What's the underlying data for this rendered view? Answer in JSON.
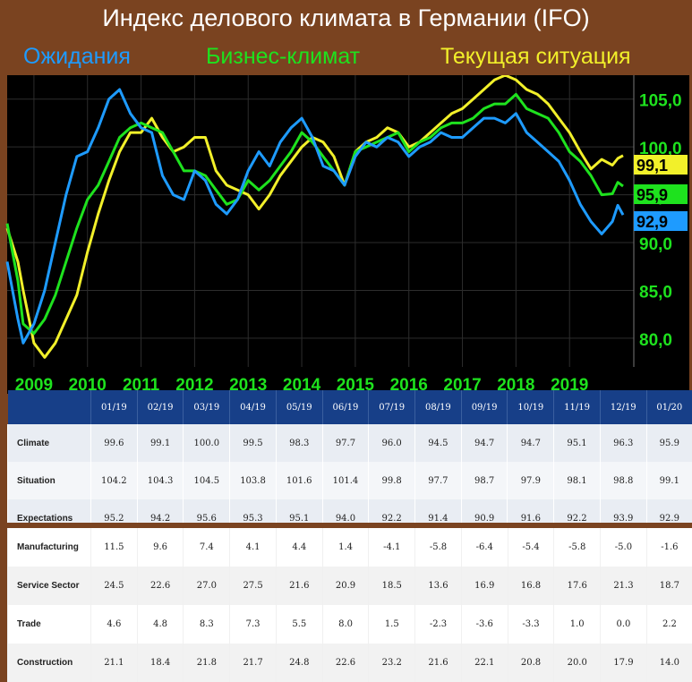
{
  "title": "Индекс делового климата в Германии (IFO)",
  "legend": {
    "expectations": "Ожидания",
    "climate": "Бизнес-климат",
    "situation": "Текущая ситуация"
  },
  "colors": {
    "expectations": "#1e9bff",
    "climate": "#1ee21e",
    "situation": "#f2f02a",
    "axis_label": "#1ee21e",
    "year_label": "#1ee21e",
    "plot_bg": "#000000",
    "table_header_bg": "#173f88"
  },
  "chart_data": {
    "type": "line",
    "x_labels": [
      "2009",
      "2010",
      "2011",
      "2012",
      "2013",
      "2014",
      "2015",
      "2016",
      "2017",
      "2018",
      "2019"
    ],
    "xlim": [
      2008.5,
      2020.2
    ],
    "ylim": [
      77.0,
      107.5
    ],
    "y_ticks": [
      80.0,
      85.0,
      90.0,
      95.0,
      100.0,
      105.0
    ],
    "y_tick_labels": [
      "80,0",
      "85,0",
      "90,0",
      "95,0",
      "100,0",
      "105,0"
    ],
    "grid": true,
    "series": [
      {
        "name": "Бизнес-климат",
        "key": "climate",
        "end_label": "95,9",
        "points": [
          [
            2008.5,
            92.0
          ],
          [
            2008.7,
            86.0
          ],
          [
            2008.8,
            81.5
          ],
          [
            2009.0,
            80.5
          ],
          [
            2009.2,
            82.0
          ],
          [
            2009.4,
            84.5
          ],
          [
            2009.6,
            88.0
          ],
          [
            2009.8,
            91.5
          ],
          [
            2010.0,
            94.5
          ],
          [
            2010.2,
            96.0
          ],
          [
            2010.4,
            98.5
          ],
          [
            2010.6,
            101.0
          ],
          [
            2010.8,
            102.0
          ],
          [
            2011.0,
            102.5
          ],
          [
            2011.2,
            102.0
          ],
          [
            2011.4,
            101.5
          ],
          [
            2011.6,
            99.5
          ],
          [
            2011.8,
            97.5
          ],
          [
            2012.0,
            97.5
          ],
          [
            2012.2,
            97.0
          ],
          [
            2012.4,
            95.5
          ],
          [
            2012.6,
            94.0
          ],
          [
            2012.8,
            94.5
          ],
          [
            2013.0,
            96.5
          ],
          [
            2013.2,
            95.5
          ],
          [
            2013.4,
            96.5
          ],
          [
            2013.6,
            98.0
          ],
          [
            2013.8,
            99.5
          ],
          [
            2014.0,
            101.5
          ],
          [
            2014.2,
            100.5
          ],
          [
            2014.4,
            99.0
          ],
          [
            2014.6,
            97.5
          ],
          [
            2014.8,
            96.0
          ],
          [
            2015.0,
            99.5
          ],
          [
            2015.2,
            100.0
          ],
          [
            2015.4,
            100.5
          ],
          [
            2015.6,
            101.0
          ],
          [
            2015.8,
            101.5
          ],
          [
            2016.0,
            99.5
          ],
          [
            2016.2,
            100.5
          ],
          [
            2016.4,
            101.0
          ],
          [
            2016.6,
            102.0
          ],
          [
            2016.8,
            102.5
          ],
          [
            2017.0,
            102.5
          ],
          [
            2017.2,
            103.0
          ],
          [
            2017.4,
            104.0
          ],
          [
            2017.6,
            104.5
          ],
          [
            2017.8,
            104.5
          ],
          [
            2018.0,
            105.5
          ],
          [
            2018.2,
            104.0
          ],
          [
            2018.4,
            103.5
          ],
          [
            2018.6,
            103.0
          ],
          [
            2018.8,
            101.5
          ],
          [
            2019.0,
            99.5
          ],
          [
            2019.2,
            98.5
          ],
          [
            2019.4,
            97.0
          ],
          [
            2019.6,
            95.0
          ],
          [
            2019.8,
            95.1
          ],
          [
            2019.9,
            96.3
          ],
          [
            2020.0,
            95.9
          ]
        ]
      },
      {
        "name": "Ожидания",
        "key": "expectations",
        "end_label": "92,9",
        "points": [
          [
            2008.5,
            88.0
          ],
          [
            2008.7,
            82.0
          ],
          [
            2008.8,
            79.5
          ],
          [
            2009.0,
            81.5
          ],
          [
            2009.2,
            85.0
          ],
          [
            2009.4,
            90.0
          ],
          [
            2009.6,
            95.0
          ],
          [
            2009.8,
            99.0
          ],
          [
            2010.0,
            99.5
          ],
          [
            2010.2,
            102.0
          ],
          [
            2010.4,
            105.0
          ],
          [
            2010.6,
            106.0
          ],
          [
            2010.8,
            103.5
          ],
          [
            2011.0,
            102.0
          ],
          [
            2011.2,
            101.5
          ],
          [
            2011.4,
            97.0
          ],
          [
            2011.6,
            95.0
          ],
          [
            2011.8,
            94.5
          ],
          [
            2012.0,
            97.5
          ],
          [
            2012.2,
            96.5
          ],
          [
            2012.4,
            94.0
          ],
          [
            2012.6,
            93.0
          ],
          [
            2012.8,
            94.5
          ],
          [
            2013.0,
            97.5
          ],
          [
            2013.2,
            99.5
          ],
          [
            2013.4,
            98.0
          ],
          [
            2013.6,
            100.5
          ],
          [
            2013.8,
            102.0
          ],
          [
            2014.0,
            103.0
          ],
          [
            2014.2,
            101.0
          ],
          [
            2014.4,
            98.0
          ],
          [
            2014.6,
            97.5
          ],
          [
            2014.8,
            96.0
          ],
          [
            2015.0,
            99.0
          ],
          [
            2015.2,
            100.5
          ],
          [
            2015.4,
            100.0
          ],
          [
            2015.6,
            101.0
          ],
          [
            2015.8,
            100.5
          ],
          [
            2016.0,
            99.0
          ],
          [
            2016.2,
            100.0
          ],
          [
            2016.4,
            100.5
          ],
          [
            2016.6,
            101.5
          ],
          [
            2016.8,
            101.0
          ],
          [
            2017.0,
            101.0
          ],
          [
            2017.2,
            102.0
          ],
          [
            2017.4,
            103.0
          ],
          [
            2017.6,
            103.0
          ],
          [
            2017.8,
            102.5
          ],
          [
            2018.0,
            103.5
          ],
          [
            2018.2,
            101.5
          ],
          [
            2018.4,
            100.5
          ],
          [
            2018.6,
            99.5
          ],
          [
            2018.8,
            98.5
          ],
          [
            2019.0,
            96.5
          ],
          [
            2019.2,
            94.0
          ],
          [
            2019.4,
            92.2
          ],
          [
            2019.6,
            90.9
          ],
          [
            2019.8,
            92.2
          ],
          [
            2019.9,
            93.9
          ],
          [
            2020.0,
            92.9
          ]
        ]
      },
      {
        "name": "Текущая ситуация",
        "key": "situation",
        "end_label": "99,1",
        "points": [
          [
            2008.5,
            91.5
          ],
          [
            2008.7,
            88.0
          ],
          [
            2008.8,
            85.0
          ],
          [
            2009.0,
            79.5
          ],
          [
            2009.2,
            78.0
          ],
          [
            2009.4,
            79.5
          ],
          [
            2009.6,
            82.0
          ],
          [
            2009.8,
            84.5
          ],
          [
            2010.0,
            89.0
          ],
          [
            2010.2,
            93.0
          ],
          [
            2010.4,
            96.5
          ],
          [
            2010.6,
            99.5
          ],
          [
            2010.8,
            101.5
          ],
          [
            2011.0,
            101.5
          ],
          [
            2011.2,
            103.0
          ],
          [
            2011.4,
            101.0
          ],
          [
            2011.6,
            99.5
          ],
          [
            2011.8,
            100.0
          ],
          [
            2012.0,
            101.0
          ],
          [
            2012.2,
            101.0
          ],
          [
            2012.4,
            97.5
          ],
          [
            2012.6,
            96.0
          ],
          [
            2012.8,
            95.5
          ],
          [
            2013.0,
            95.0
          ],
          [
            2013.2,
            93.5
          ],
          [
            2013.4,
            95.0
          ],
          [
            2013.6,
            97.0
          ],
          [
            2013.8,
            98.5
          ],
          [
            2014.0,
            100.0
          ],
          [
            2014.2,
            101.0
          ],
          [
            2014.4,
            100.5
          ],
          [
            2014.6,
            99.0
          ],
          [
            2014.8,
            96.0
          ],
          [
            2015.0,
            99.5
          ],
          [
            2015.2,
            100.5
          ],
          [
            2015.4,
            101.0
          ],
          [
            2015.6,
            102.0
          ],
          [
            2015.8,
            101.5
          ],
          [
            2016.0,
            100.0
          ],
          [
            2016.2,
            100.5
          ],
          [
            2016.4,
            101.5
          ],
          [
            2016.6,
            102.5
          ],
          [
            2016.8,
            103.5
          ],
          [
            2017.0,
            104.0
          ],
          [
            2017.2,
            105.0
          ],
          [
            2017.4,
            106.0
          ],
          [
            2017.6,
            107.0
          ],
          [
            2017.8,
            107.5
          ],
          [
            2018.0,
            107.0
          ],
          [
            2018.2,
            106.0
          ],
          [
            2018.4,
            105.5
          ],
          [
            2018.6,
            104.5
          ],
          [
            2018.8,
            103.0
          ],
          [
            2019.0,
            101.5
          ],
          [
            2019.2,
            99.5
          ],
          [
            2019.4,
            97.7
          ],
          [
            2019.6,
            98.7
          ],
          [
            2019.8,
            98.1
          ],
          [
            2019.9,
            98.8
          ],
          [
            2020.0,
            99.1
          ]
        ]
      }
    ]
  },
  "table_top": {
    "months": [
      "01/19",
      "02/19",
      "03/19",
      "04/19",
      "05/19",
      "06/19",
      "07/19",
      "08/19",
      "09/19",
      "10/19",
      "11/19",
      "12/19",
      "01/20"
    ],
    "rows": [
      {
        "label": "Climate",
        "values": [
          "99.6",
          "99.1",
          "100.0",
          "99.5",
          "98.3",
          "97.7",
          "96.0",
          "94.5",
          "94.7",
          "94.7",
          "95.1",
          "96.3",
          "95.9"
        ]
      },
      {
        "label": "Situation",
        "values": [
          "104.2",
          "104.3",
          "104.5",
          "103.8",
          "101.6",
          "101.4",
          "99.8",
          "97.7",
          "98.7",
          "97.9",
          "98.1",
          "98.8",
          "99.1"
        ]
      },
      {
        "label": "Expectations",
        "values": [
          "95.2",
          "94.2",
          "95.6",
          "95.3",
          "95.1",
          "94.0",
          "92.2",
          "91.4",
          "90.9",
          "91.6",
          "92.2",
          "93.9",
          "92.9"
        ]
      }
    ]
  },
  "table_bottom": {
    "rows": [
      {
        "label": "Manufacturing",
        "values": [
          "11.5",
          "9.6",
          "7.4",
          "4.1",
          "4.4",
          "1.4",
          "-4.1",
          "-5.8",
          "-6.4",
          "-5.4",
          "-5.8",
          "-5.0",
          "-1.6"
        ]
      },
      {
        "label": "Service Sector",
        "values": [
          "24.5",
          "22.6",
          "27.0",
          "27.5",
          "21.6",
          "20.9",
          "18.5",
          "13.6",
          "16.9",
          "16.8",
          "17.6",
          "21.3",
          "18.7"
        ]
      },
      {
        "label": "Trade",
        "values": [
          "4.6",
          "4.8",
          "8.3",
          "7.3",
          "5.5",
          "8.0",
          "1.5",
          "-2.3",
          "-3.6",
          "-3.3",
          "1.0",
          "0.0",
          "2.2"
        ]
      },
      {
        "label": "Construction",
        "values": [
          "21.1",
          "18.4",
          "21.8",
          "21.7",
          "24.8",
          "22.6",
          "23.2",
          "21.6",
          "22.1",
          "20.8",
          "20.0",
          "17.9",
          "14.0"
        ]
      }
    ]
  }
}
